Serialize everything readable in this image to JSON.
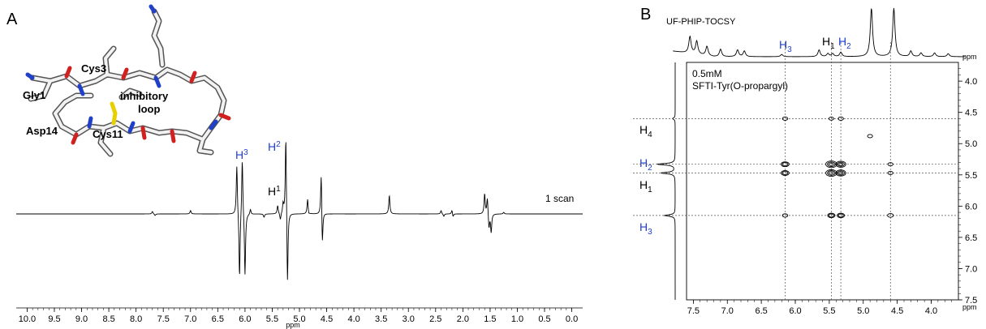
{
  "panels": {
    "a": "A",
    "b": "B"
  },
  "panel_a": {
    "molecule_labels": {
      "gly": "Gly1",
      "cys3": "Cys3",
      "loop1": "inhibitory",
      "loop2": "loop",
      "asp": "Asp14",
      "cys11": "Cys11"
    },
    "peak_labels": {
      "h3_main": "H",
      "h3_sup": "3",
      "h2_main": "H",
      "h2_sup": "2",
      "h1_main": "H",
      "h1_sup": "1"
    },
    "scan_label": "1 scan",
    "xlabel": "ppm",
    "x_ticks": [
      "10.0",
      "9.5",
      "9.0",
      "8.5",
      "8.0",
      "7.5",
      "7.0",
      "6.5",
      "6.0",
      "5.5",
      "5.0",
      "4.5",
      "4.0",
      "3.5",
      "3.0",
      "2.5",
      "2.0",
      "1.5",
      "1.0",
      "0.5",
      "0.0"
    ]
  },
  "panel_b": {
    "projection_label": "UF-PHIP-TOCSY",
    "top_labels": {
      "h3_main": "H",
      "h3_sub": "3",
      "h1_main": "H",
      "h1_sub": "1",
      "h2_main": "H",
      "h2_sub": "2"
    },
    "side_labels": {
      "h4_main": "H",
      "h4_sub": "4",
      "h2_main": "H",
      "h2_sub": "2",
      "h1_main": "H",
      "h1_sub": "1",
      "h3_main": "H",
      "h3_sub": "3"
    },
    "annotation_line1": "0.5mM",
    "annotation_line2": "SFTI-Tyr(O-propargyl)",
    "xlabel": "ppm",
    "ylabel": "ppm",
    "x_ticks": [
      "7.5",
      "7.0",
      "6.5",
      "6.0",
      "5.5",
      "5.0",
      "4.5",
      "4.0"
    ],
    "y_ticks": [
      "4.0",
      "4.5",
      "5.0",
      "5.5",
      "6.0",
      "6.5",
      "7.0",
      "7.5"
    ]
  },
  "colors": {
    "h_label_blue": "#1f3fcf",
    "sulfur_yellow": "#e8d000",
    "oxygen_red": "#d02020",
    "nitrogen_blue": "#2040c8"
  },
  "chart_data": [
    {
      "type": "line",
      "title": "",
      "xlabel": "ppm",
      "xlim": [
        10.2,
        -0.2
      ],
      "reversed_x": true,
      "peaks": [
        {
          "ppm": 7.7,
          "amp": 0.03
        },
        {
          "ppm": 7.65,
          "amp": -0.02
        },
        {
          "ppm": 7.0,
          "amp": 0.04
        },
        {
          "ppm": 6.15,
          "amp": 0.6
        },
        {
          "ppm": 6.1,
          "amp": -0.8
        },
        {
          "ppm": 6.05,
          "amp": 0.7
        },
        {
          "ppm": 6.0,
          "amp": -0.75
        },
        {
          "ppm": 5.9,
          "amp": 0.06
        },
        {
          "ppm": 5.65,
          "amp": -0.04
        },
        {
          "ppm": 5.4,
          "amp": 0.1
        },
        {
          "ppm": 5.35,
          "amp": -0.08
        },
        {
          "ppm": 5.3,
          "amp": 0.12
        },
        {
          "ppm": 5.25,
          "amp": 1.0
        },
        {
          "ppm": 5.22,
          "amp": -0.92
        },
        {
          "ppm": 4.85,
          "amp": 0.18
        },
        {
          "ppm": 4.83,
          "amp": -0.03
        },
        {
          "ppm": 4.6,
          "amp": 0.55
        },
        {
          "ppm": 4.58,
          "amp": -0.45
        },
        {
          "ppm": 3.35,
          "amp": 0.22
        },
        {
          "ppm": 2.4,
          "amp": 0.04
        },
        {
          "ppm": 2.35,
          "amp": -0.03
        },
        {
          "ppm": 2.2,
          "amp": 0.05
        },
        {
          "ppm": 2.18,
          "amp": -0.04
        },
        {
          "ppm": 1.6,
          "amp": 0.24
        },
        {
          "ppm": 1.55,
          "amp": 0.2
        },
        {
          "ppm": 1.52,
          "amp": -0.18
        },
        {
          "ppm": 1.48,
          "amp": -0.22
        },
        {
          "ppm": 1.25,
          "amp": 0.02
        }
      ]
    },
    {
      "type": "heatmap",
      "title": "",
      "xlabel": "ppm",
      "ylabel": "ppm",
      "xlim": [
        7.6,
        3.6
      ],
      "ylim": [
        3.7,
        7.5
      ],
      "guide_lines_x": [
        6.15,
        5.47,
        5.33,
        4.6
      ],
      "guide_lines_y": [
        4.6,
        5.33,
        5.47,
        6.15
      ],
      "cross_peaks": [
        {
          "x": 6.15,
          "y": 4.6,
          "size": 0.8
        },
        {
          "x": 5.47,
          "y": 4.6,
          "size": 0.6
        },
        {
          "x": 5.33,
          "y": 4.6,
          "size": 0.8
        },
        {
          "x": 4.9,
          "y": 4.88,
          "size": 0.7
        },
        {
          "x": 6.15,
          "y": 5.33,
          "size": 1.8
        },
        {
          "x": 5.47,
          "y": 5.33,
          "size": 3.0
        },
        {
          "x": 5.33,
          "y": 5.33,
          "size": 2.6
        },
        {
          "x": 4.6,
          "y": 5.33,
          "size": 0.7
        },
        {
          "x": 6.15,
          "y": 5.47,
          "size": 1.8
        },
        {
          "x": 5.47,
          "y": 5.47,
          "size": 3.0
        },
        {
          "x": 5.33,
          "y": 5.47,
          "size": 2.6
        },
        {
          "x": 4.6,
          "y": 5.47,
          "size": 0.7
        },
        {
          "x": 6.15,
          "y": 6.15,
          "size": 0.8
        },
        {
          "x": 5.47,
          "y": 6.15,
          "size": 1.6
        },
        {
          "x": 5.33,
          "y": 6.15,
          "size": 1.6
        },
        {
          "x": 4.6,
          "y": 6.15,
          "size": 1.0
        }
      ],
      "top_projection_peaks": [
        {
          "ppm": 7.55,
          "h": 0.45
        },
        {
          "ppm": 7.45,
          "h": 0.35
        },
        {
          "ppm": 7.3,
          "h": 0.25
        },
        {
          "ppm": 7.1,
          "h": 0.2
        },
        {
          "ppm": 6.85,
          "h": 0.18
        },
        {
          "ppm": 6.75,
          "h": 0.15
        },
        {
          "ppm": 6.2,
          "h": 0.06
        },
        {
          "ppm": 5.65,
          "h": 0.18
        },
        {
          "ppm": 5.52,
          "h": 0.08
        },
        {
          "ppm": 5.45,
          "h": 0.08
        },
        {
          "ppm": 5.33,
          "h": 0.12
        },
        {
          "ppm": 4.88,
          "h": 1.3
        },
        {
          "ppm": 4.55,
          "h": 1.3
        },
        {
          "ppm": 4.3,
          "h": 0.15
        },
        {
          "ppm": 4.15,
          "h": 0.1
        },
        {
          "ppm": 3.95,
          "h": 0.1
        },
        {
          "ppm": 3.75,
          "h": 0.08
        }
      ],
      "side_projection_peaks": [
        {
          "ppm": 4.6,
          "w": 0.15
        },
        {
          "ppm": 5.33,
          "w": 1.0
        },
        {
          "ppm": 5.47,
          "w": 0.8
        },
        {
          "ppm": 6.15,
          "w": 0.6
        }
      ]
    }
  ]
}
